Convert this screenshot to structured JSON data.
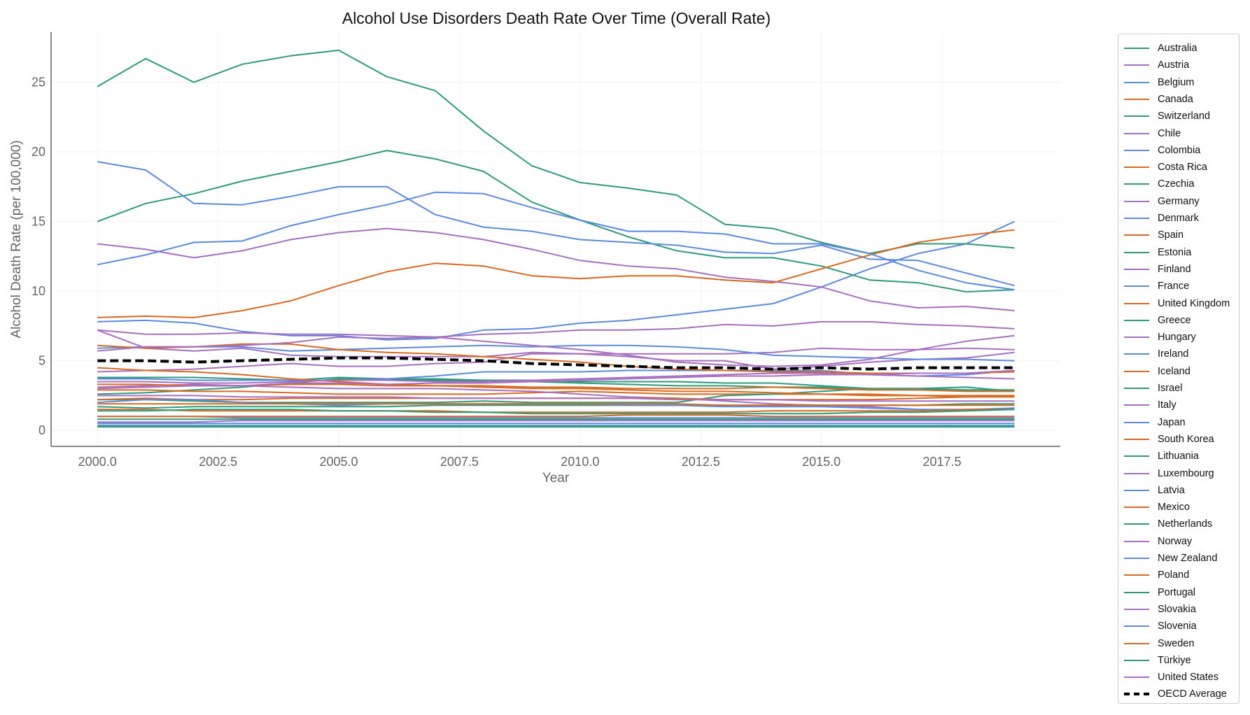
{
  "chart_data": {
    "type": "line",
    "title": "Alcohol Use Disorders Death Rate Over Time (Overall Rate)",
    "xlabel": "Year",
    "ylabel": "Alcohol Death Rate (per 100,000)",
    "x": [
      2000,
      2001,
      2002,
      2003,
      2004,
      2005,
      2006,
      2007,
      2008,
      2009,
      2010,
      2011,
      2012,
      2013,
      2014,
      2015,
      2016,
      2017,
      2018,
      2019
    ],
    "xlim": [
      1999.04,
      2019.95
    ],
    "ylim": [
      -1.15,
      28.6
    ],
    "xticks": [
      "2000.0",
      "2002.5",
      "2005.0",
      "2007.5",
      "2010.0",
      "2012.5",
      "2015.0",
      "2017.5"
    ],
    "yticks": [
      "0",
      "5",
      "10",
      "15",
      "20",
      "25"
    ],
    "grid": true,
    "legend_position": "outside-right",
    "colors": {
      "green": "#2e9a7c",
      "purple": "#a86fc0",
      "blue": "#5b8ae0",
      "orange": "#d8691f",
      "average": "#000000"
    },
    "series": [
      {
        "name": "Australia",
        "color": "#2e9a7c",
        "values": [
          2.6,
          2.7,
          2.9,
          3.1,
          3.4,
          3.7,
          3.6,
          3.6,
          3.6,
          3.5,
          3.4,
          3.3,
          3.2,
          3.2,
          3.1,
          3.1,
          2.9,
          2.9,
          2.9,
          2.9
        ]
      },
      {
        "name": "Austria",
        "color": "#a86fc0",
        "values": [
          4.2,
          4.3,
          4.4,
          4.6,
          4.8,
          4.6,
          4.6,
          4.8,
          4.9,
          5.5,
          5.5,
          5.3,
          5.0,
          5.0,
          4.4,
          4.6,
          4.9,
          5.1,
          5.2,
          5.6
        ]
      },
      {
        "name": "Belgium",
        "color": "#5b8ae0",
        "values": [
          7.8,
          7.9,
          7.7,
          7.1,
          6.8,
          6.8,
          6.5,
          6.6,
          7.2,
          7.3,
          7.7,
          7.9,
          8.3,
          8.7,
          9.1,
          10.3,
          11.6,
          12.7,
          13.4,
          15.0
        ]
      },
      {
        "name": "Canada",
        "color": "#d8691f",
        "values": [
          2.9,
          2.9,
          2.8,
          2.8,
          2.7,
          2.6,
          2.6,
          2.6,
          2.6,
          2.7,
          2.8,
          2.7,
          2.6,
          2.6,
          2.6,
          2.6,
          2.6,
          2.5,
          2.5,
          2.5
        ]
      },
      {
        "name": "Switzerland",
        "color": "#2e9a7c",
        "values": [
          2.2,
          2.2,
          2.1,
          2.0,
          2.0,
          2.0,
          2.0,
          2.0,
          2.1,
          2.0,
          2.0,
          2.0,
          2.0,
          2.5,
          2.6,
          2.8,
          3.0,
          3.0,
          3.1,
          2.8
        ]
      },
      {
        "name": "Chile",
        "color": "#a86fc0",
        "values": [
          3.1,
          3.2,
          3.3,
          3.2,
          3.1,
          3.0,
          3.0,
          3.0,
          2.9,
          2.8,
          2.6,
          2.4,
          2.3,
          2.1,
          1.9,
          1.8,
          1.7,
          1.5,
          1.4,
          1.6
        ]
      },
      {
        "name": "Colombia",
        "color": "#5b8ae0",
        "values": [
          1.0,
          1.0,
          1.0,
          0.9,
          0.9,
          0.9,
          0.9,
          0.9,
          0.9,
          0.9,
          0.9,
          0.9,
          0.9,
          0.9,
          0.9,
          0.9,
          0.9,
          0.9,
          0.9,
          0.9
        ]
      },
      {
        "name": "Costa Rica",
        "color": "#d8691f",
        "values": [
          3.3,
          3.3,
          3.2,
          3.2,
          3.3,
          3.3,
          3.2,
          3.2,
          3.2,
          3.1,
          3.1,
          3.0,
          3.0,
          3.0,
          3.1,
          3.0,
          2.9,
          2.9,
          2.8,
          2.8
        ]
      },
      {
        "name": "Czechia",
        "color": "#2e9a7c",
        "values": [
          3.8,
          3.8,
          3.8,
          3.7,
          3.6,
          3.8,
          3.7,
          3.7,
          3.6,
          3.6,
          3.5,
          3.5,
          3.5,
          3.4,
          3.4,
          3.2,
          3.0,
          3.0,
          2.9,
          2.9
        ]
      },
      {
        "name": "Germany",
        "color": "#a86fc0",
        "values": [
          7.2,
          5.9,
          5.7,
          5.9,
          5.4,
          5.3,
          5.3,
          5.3,
          5.3,
          5.6,
          5.5,
          5.5,
          5.5,
          5.5,
          5.6,
          5.9,
          5.8,
          5.8,
          5.9,
          5.8
        ]
      },
      {
        "name": "Denmark",
        "color": "#5b8ae0",
        "values": [
          3.7,
          3.7,
          3.6,
          3.6,
          3.6,
          3.6,
          3.7,
          3.9,
          4.2,
          4.2,
          4.2,
          4.3,
          4.3,
          4.3,
          4.3,
          4.3,
          4.0,
          3.9,
          4.0,
          4.3
        ]
      },
      {
        "name": "Spain",
        "color": "#d8691f",
        "values": [
          2.2,
          2.3,
          2.2,
          2.2,
          2.3,
          2.3,
          2.3,
          2.3,
          2.3,
          2.3,
          2.3,
          2.3,
          2.3,
          2.2,
          2.2,
          2.2,
          2.2,
          2.3,
          2.4,
          2.5
        ]
      },
      {
        "name": "Estonia",
        "color": "#2e9a7c",
        "values": [
          24.7,
          26.7,
          25.0,
          26.3,
          26.9,
          27.3,
          25.4,
          24.4,
          21.5,
          19.0,
          17.8,
          17.4,
          16.9,
          14.8,
          14.5,
          13.5,
          12.7,
          13.4,
          13.4,
          13.1
        ]
      },
      {
        "name": "Finland",
        "color": "#a86fc0",
        "values": [
          7.2,
          6.9,
          6.9,
          7.0,
          6.9,
          6.9,
          6.8,
          6.7,
          6.9,
          7.0,
          7.2,
          7.2,
          7.3,
          7.6,
          7.5,
          7.8,
          7.8,
          7.6,
          7.5,
          7.3
        ]
      },
      {
        "name": "France",
        "color": "#5b8ae0",
        "values": [
          5.9,
          6.0,
          6.0,
          6.0,
          5.7,
          5.8,
          5.9,
          6.0,
          6.1,
          6.0,
          6.1,
          6.1,
          6.0,
          5.8,
          5.4,
          5.3,
          5.2,
          5.1,
          5.1,
          5.0
        ]
      },
      {
        "name": "United Kingdom",
        "color": "#d8691f",
        "values": [
          4.5,
          4.3,
          4.2,
          4.0,
          3.7,
          3.5,
          3.3,
          3.2,
          3.1,
          3.0,
          3.0,
          2.9,
          2.8,
          2.8,
          2.7,
          2.6,
          2.5,
          2.5,
          2.4,
          2.4
        ]
      },
      {
        "name": "Greece",
        "color": "#2e9a7c",
        "values": [
          1.7,
          1.6,
          1.7,
          1.7,
          1.7,
          1.7,
          1.7,
          1.8,
          1.8,
          1.8,
          1.8,
          1.8,
          1.8,
          1.8,
          1.8,
          1.8,
          1.8,
          1.8,
          1.9,
          1.9
        ]
      },
      {
        "name": "Hungary",
        "color": "#a86fc0",
        "values": [
          13.4,
          13.0,
          12.4,
          12.9,
          13.7,
          14.2,
          14.5,
          14.2,
          13.7,
          13.0,
          12.2,
          11.8,
          11.6,
          11.0,
          10.7,
          10.3,
          9.3,
          8.8,
          8.9,
          8.6
        ]
      },
      {
        "name": "Ireland",
        "color": "#5b8ae0",
        "values": [
          2.0,
          2.2,
          2.2,
          2.0,
          1.9,
          1.8,
          1.9,
          1.9,
          1.9,
          1.9,
          1.9,
          1.8,
          1.8,
          1.7,
          1.7,
          1.7,
          1.6,
          1.5,
          1.5,
          1.6
        ]
      },
      {
        "name": "Iceland",
        "color": "#d8691f",
        "values": [
          1.5,
          1.5,
          1.4,
          1.4,
          1.4,
          1.4,
          1.4,
          1.4,
          1.3,
          1.3,
          1.3,
          1.3,
          1.3,
          1.3,
          1.4,
          1.4,
          1.4,
          1.4,
          1.5,
          1.5
        ]
      },
      {
        "name": "Israel",
        "color": "#2e9a7c",
        "values": [
          0.35,
          0.35,
          0.35,
          0.35,
          0.35,
          0.35,
          0.35,
          0.35,
          0.35,
          0.35,
          0.35,
          0.35,
          0.35,
          0.35,
          0.35,
          0.35,
          0.35,
          0.35,
          0.35,
          0.35
        ]
      },
      {
        "name": "Italy",
        "color": "#a86fc0",
        "values": [
          0.6,
          0.6,
          0.6,
          0.7,
          0.7,
          0.7,
          0.7,
          0.7,
          0.7,
          0.7,
          0.7,
          0.7,
          0.7,
          0.7,
          0.7,
          0.7,
          0.7,
          0.7,
          0.7,
          0.7
        ]
      },
      {
        "name": "Japan",
        "color": "#5b8ae0",
        "values": [
          0.3,
          0.3,
          0.3,
          0.3,
          0.3,
          0.3,
          0.3,
          0.3,
          0.3,
          0.3,
          0.3,
          0.3,
          0.3,
          0.3,
          0.3,
          0.3,
          0.3,
          0.3,
          0.3,
          0.3
        ]
      },
      {
        "name": "South Korea",
        "color": "#d8691f",
        "values": [
          1.0,
          1.0,
          1.0,
          1.0,
          1.0,
          1.0,
          1.0,
          1.0,
          1.0,
          1.0,
          1.0,
          1.1,
          1.1,
          1.1,
          1.0,
          1.0,
          1.0,
          1.0,
          1.0,
          1.0
        ]
      },
      {
        "name": "Lithuania",
        "color": "#2e9a7c",
        "values": [
          15.0,
          16.3,
          17.0,
          17.9,
          18.6,
          19.3,
          20.1,
          19.5,
          18.6,
          16.4,
          15.1,
          13.9,
          12.9,
          12.4,
          12.4,
          11.8,
          10.8,
          10.6,
          9.95,
          10.1
        ]
      },
      {
        "name": "Luxembourg",
        "color": "#a86fc0",
        "values": [
          3.5,
          3.5,
          3.4,
          3.4,
          3.5,
          3.6,
          3.6,
          3.5,
          3.5,
          3.6,
          3.7,
          3.8,
          3.9,
          4.0,
          4.1,
          4.1,
          4.0,
          3.9,
          3.8,
          3.7
        ]
      },
      {
        "name": "Latvia",
        "color": "#5b8ae0",
        "values": [
          19.3,
          18.7,
          16.3,
          16.2,
          16.8,
          17.5,
          17.5,
          15.5,
          14.6,
          14.3,
          13.7,
          13.5,
          13.3,
          12.8,
          12.7,
          13.3,
          12.3,
          12.2,
          11.3,
          10.4
        ]
      },
      {
        "name": "Mexico",
        "color": "#d8691f",
        "values": [
          8.1,
          8.2,
          8.1,
          8.6,
          9.3,
          10.4,
          11.4,
          12.0,
          11.8,
          11.1,
          10.9,
          11.1,
          11.1,
          10.8,
          10.6,
          11.6,
          12.6,
          13.5,
          14.0,
          14.4
        ]
      },
      {
        "name": "Netherlands",
        "color": "#2e9a7c",
        "values": [
          0.8,
          0.8,
          0.8,
          0.8,
          0.8,
          0.8,
          0.8,
          0.8,
          0.8,
          0.8,
          0.8,
          0.8,
          0.8,
          0.8,
          0.8,
          0.8,
          0.8,
          0.8,
          0.8,
          0.8
        ]
      },
      {
        "name": "Norway",
        "color": "#a86fc0",
        "values": [
          2.5,
          2.5,
          2.5,
          2.4,
          2.4,
          2.4,
          2.4,
          2.3,
          2.3,
          2.3,
          2.3,
          2.3,
          2.2,
          2.2,
          2.2,
          2.1,
          2.1,
          2.1,
          2.1,
          2.1
        ]
      },
      {
        "name": "New Zealand",
        "color": "#5b8ae0",
        "values": [
          0.5,
          0.5,
          0.5,
          0.5,
          0.5,
          0.5,
          0.5,
          0.5,
          0.5,
          0.5,
          0.5,
          0.5,
          0.5,
          0.5,
          0.5,
          0.5,
          0.5,
          0.5,
          0.5,
          0.5
        ]
      },
      {
        "name": "Poland",
        "color": "#d8691f",
        "values": [
          6.1,
          5.9,
          6.0,
          6.2,
          6.2,
          5.8,
          5.6,
          5.5,
          5.3,
          5.1,
          4.9,
          4.6,
          4.4,
          4.3,
          4.2,
          4.2,
          4.1,
          4.1,
          4.1,
          4.2
        ]
      },
      {
        "name": "Portugal",
        "color": "#2e9a7c",
        "values": [
          1.4,
          1.4,
          1.5,
          1.5,
          1.5,
          1.4,
          1.4,
          1.3,
          1.3,
          1.2,
          1.2,
          1.2,
          1.2,
          1.2,
          1.2,
          1.2,
          1.3,
          1.3,
          1.4,
          1.5
        ]
      },
      {
        "name": "Slovakia",
        "color": "#a86fc0",
        "values": [
          5.7,
          6.0,
          6.0,
          6.1,
          6.3,
          6.7,
          6.6,
          6.7,
          6.4,
          6.1,
          5.8,
          5.4,
          4.9,
          4.7,
          4.6,
          4.7,
          5.1,
          5.8,
          6.4,
          6.8
        ]
      },
      {
        "name": "Slovenia",
        "color": "#5b8ae0",
        "values": [
          11.9,
          12.6,
          13.5,
          13.6,
          14.7,
          15.5,
          16.2,
          17.1,
          17.0,
          16.0,
          15.1,
          14.3,
          14.3,
          14.1,
          13.4,
          13.4,
          12.7,
          11.5,
          10.6,
          10.1
        ]
      },
      {
        "name": "Sweden",
        "color": "#d8691f",
        "values": [
          1.9,
          1.9,
          1.9,
          1.9,
          1.9,
          1.9,
          1.9,
          1.9,
          1.9,
          1.9,
          1.9,
          1.9,
          1.9,
          1.8,
          1.8,
          1.8,
          1.8,
          1.8,
          1.8,
          1.8
        ]
      },
      {
        "name": "Türkiye",
        "color": "#2e9a7c",
        "values": [
          0.25,
          0.25,
          0.25,
          0.25,
          0.25,
          0.25,
          0.25,
          0.25,
          0.25,
          0.25,
          0.25,
          0.25,
          0.25,
          0.25,
          0.25,
          0.25,
          0.25,
          0.25,
          0.25,
          0.25
        ]
      },
      {
        "name": "United States",
        "color": "#a86fc0",
        "values": [
          3.0,
          3.1,
          3.2,
          3.2,
          3.4,
          3.4,
          3.3,
          3.4,
          3.4,
          3.5,
          3.6,
          3.7,
          3.8,
          3.9,
          3.9,
          4.0,
          4.0,
          4.1,
          4.1,
          4.3
        ]
      },
      {
        "name": "OECD Average",
        "color": "#000000",
        "dashed": true,
        "values": [
          5.0,
          5.0,
          4.9,
          5.0,
          5.1,
          5.2,
          5.2,
          5.1,
          5.0,
          4.8,
          4.7,
          4.6,
          4.5,
          4.5,
          4.4,
          4.5,
          4.4,
          4.5,
          4.5,
          4.5
        ]
      }
    ]
  }
}
